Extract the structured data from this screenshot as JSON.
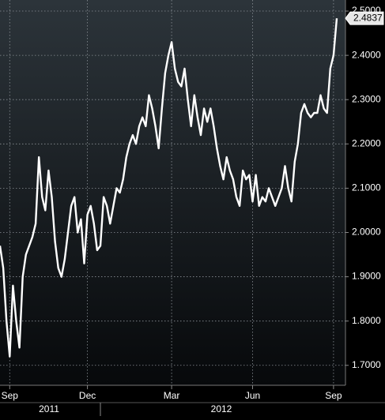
{
  "chart_data": {
    "type": "line",
    "series": [
      {
        "color": "#ffffff",
        "values": [
          1.97,
          1.92,
          1.8,
          1.72,
          1.88,
          1.8,
          1.74,
          1.9,
          1.95,
          1.97,
          1.99,
          2.02,
          2.17,
          2.08,
          2.05,
          2.14,
          2.08,
          1.98,
          1.92,
          1.9,
          1.94,
          2.0,
          2.06,
          2.08,
          2.0,
          2.03,
          1.93,
          2.04,
          2.06,
          2.02,
          1.96,
          1.97,
          2.08,
          2.06,
          2.02,
          2.06,
          2.1,
          2.09,
          2.12,
          2.17,
          2.2,
          2.22,
          2.2,
          2.24,
          2.26,
          2.24,
          2.31,
          2.28,
          2.24,
          2.19,
          2.28,
          2.36,
          2.4,
          2.43,
          2.37,
          2.34,
          2.33,
          2.37,
          2.3,
          2.24,
          2.31,
          2.26,
          2.22,
          2.28,
          2.25,
          2.28,
          2.24,
          2.19,
          2.15,
          2.12,
          2.17,
          2.14,
          2.12,
          2.08,
          2.06,
          2.14,
          2.12,
          2.13,
          2.07,
          2.13,
          2.06,
          2.08,
          2.07,
          2.1,
          2.08,
          2.06,
          2.08,
          2.1,
          2.15,
          2.1,
          2.07,
          2.16,
          2.2,
          2.27,
          2.29,
          2.27,
          2.26,
          2.27,
          2.27,
          2.31,
          2.28,
          2.27,
          2.37,
          2.4,
          2.4837
        ]
      }
    ],
    "xlim": [
      0,
      104
    ],
    "xticks": [
      {
        "value": 3,
        "label": "Sep"
      },
      {
        "value": 27,
        "label": "Dec"
      },
      {
        "value": 53,
        "label": "Mar"
      },
      {
        "value": 78,
        "label": "Jun"
      },
      {
        "value": 103,
        "label": "Sep"
      }
    ],
    "year_labels": [
      "2011",
      "2012"
    ],
    "ylim": [
      1.655,
      2.525
    ],
    "yticks": [
      {
        "value": 1.7,
        "label": "1.7000"
      },
      {
        "value": 1.8,
        "label": "1.8000"
      },
      {
        "value": 1.9,
        "label": "1.9000"
      },
      {
        "value": 2.0,
        "label": "2.0000"
      },
      {
        "value": 2.1,
        "label": "2.1000"
      },
      {
        "value": 2.2,
        "label": "2.2000"
      },
      {
        "value": 2.3,
        "label": "2.3000"
      },
      {
        "value": 2.4,
        "label": "2.4000"
      },
      {
        "value": 2.5,
        "label": "2.5000"
      }
    ],
    "grid": true
  }
}
